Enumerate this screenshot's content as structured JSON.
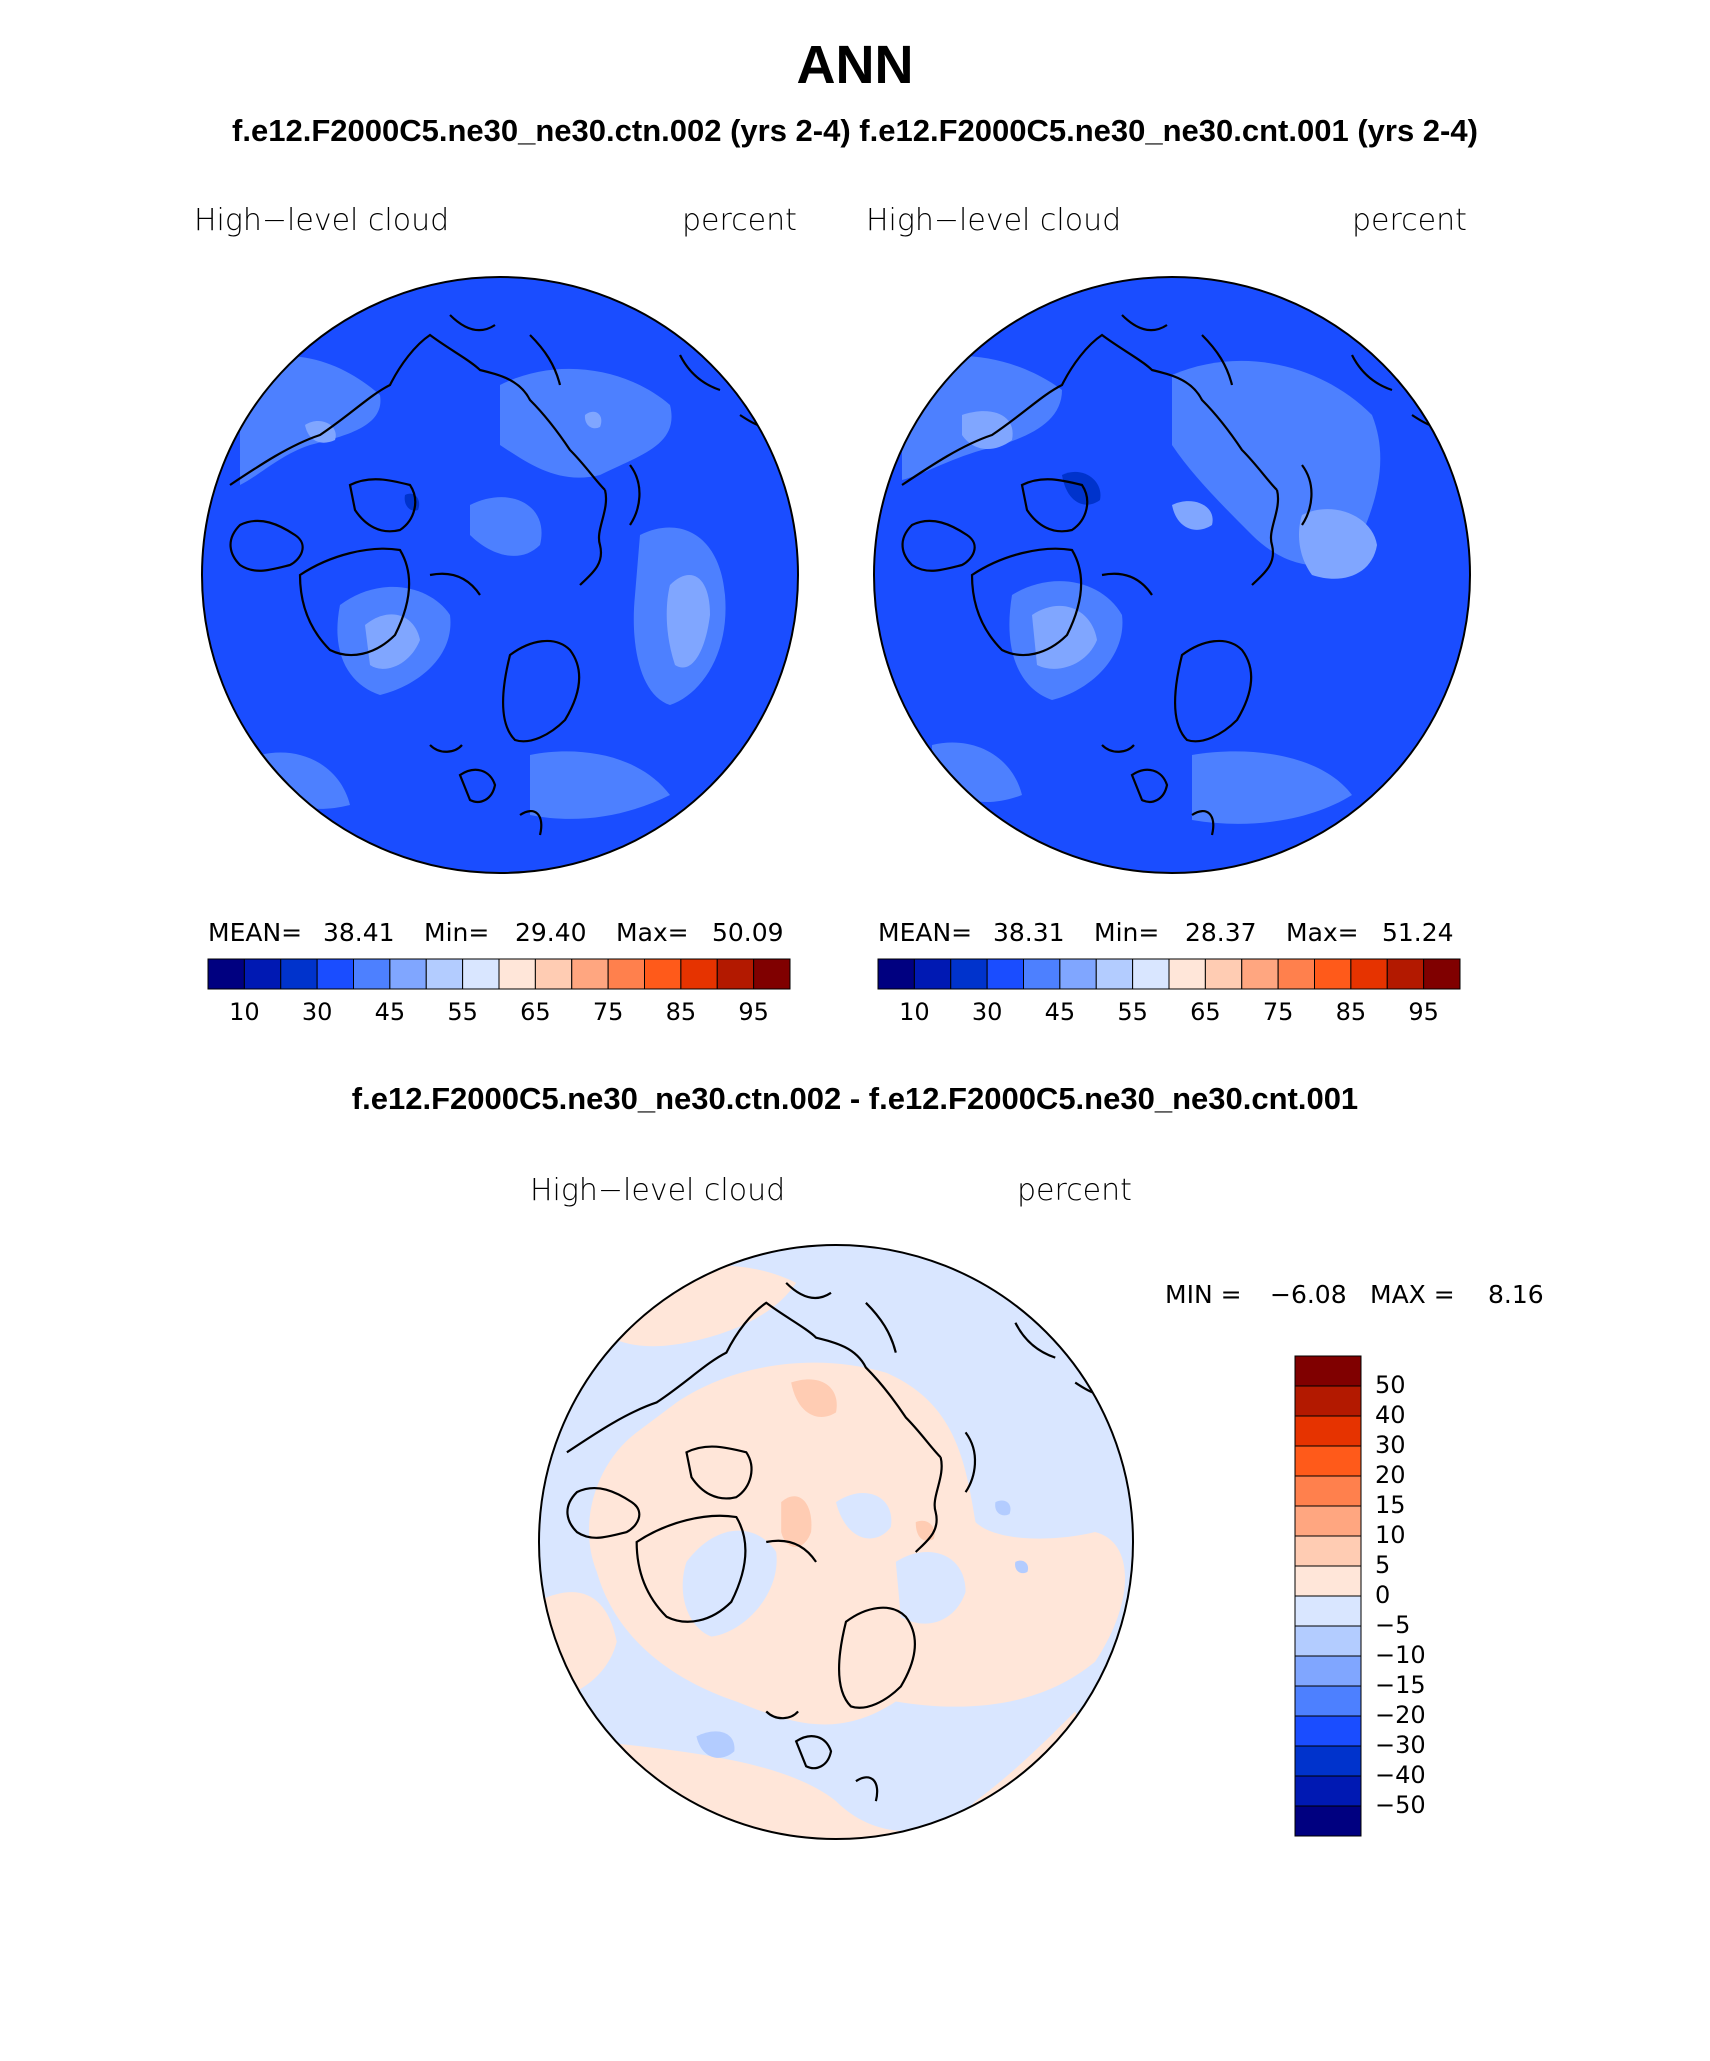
{
  "title": "ANN",
  "subtitle": "f.e12.F2000C5.ne30_ne30.ctn.002 (yrs 2-4) f.e12.F2000C5.ne30_ne30.cnt.001 (yrs 2-4)",
  "diff_title": "f.e12.F2000C5.ne30_ne30.ctn.002 - f.e12.F2000C5.ne30_ne30.cnt.001",
  "panels": [
    {
      "variable": "High−level cloud",
      "units": "percent",
      "mean_label": "MEAN=",
      "mean": "38.41",
      "min_label": "Min=",
      "min": "29.40",
      "max_label": "Max=",
      "max": "50.09"
    },
    {
      "variable": "High−level cloud",
      "units": "percent",
      "mean_label": "MEAN=",
      "mean": "38.31",
      "min_label": "Min=",
      "min": "28.37",
      "max_label": "Max=",
      "max": "51.24"
    }
  ],
  "abs_colorbar": {
    "colors": [
      "#000080",
      "#0019b3",
      "#0033cc",
      "#1a4dff",
      "#4d80ff",
      "#80a6ff",
      "#b3ccff",
      "#d9e6ff",
      "#ffe6d9",
      "#ffccb3",
      "#ffa680",
      "#ff804d",
      "#ff5a1a",
      "#e63300",
      "#b31900",
      "#800000"
    ],
    "labels": [
      "10",
      "30",
      "45",
      "55",
      "65",
      "75",
      "85",
      "95"
    ]
  },
  "diff_panel": {
    "variable": "High−level cloud",
    "units": "percent",
    "min_label": "MIN =",
    "min": "−6.08",
    "max_label": "MAX =",
    "max": "8.16"
  },
  "diff_colorbar": {
    "colors": [
      "#800000",
      "#b31900",
      "#e63300",
      "#ff5a1a",
      "#ff804d",
      "#ffa680",
      "#ffccb3",
      "#ffe6d9",
      "#d9e6ff",
      "#b3ccff",
      "#80a6ff",
      "#4d80ff",
      "#1a4dff",
      "#0033cc",
      "#0019b3",
      "#000080"
    ],
    "labels": [
      "50",
      "40",
      "30",
      "20",
      "15",
      "10",
      "5",
      "0",
      "−5",
      "−10",
      "−15",
      "−20",
      "−30",
      "−40",
      "−50"
    ]
  },
  "map_colors": {
    "abs_base": "#1a4dff",
    "abs_light": "#4d80ff",
    "abs_lighter": "#80a6ff",
    "abs_lightest": "#b3ccff",
    "abs_dark": "#0033cc",
    "diff_neg": "#d9e6ff",
    "diff_pos": "#ffe6d9",
    "diff_pos2": "#ffccb3",
    "diff_neg2": "#b3ccff",
    "coast": "#000000"
  }
}
